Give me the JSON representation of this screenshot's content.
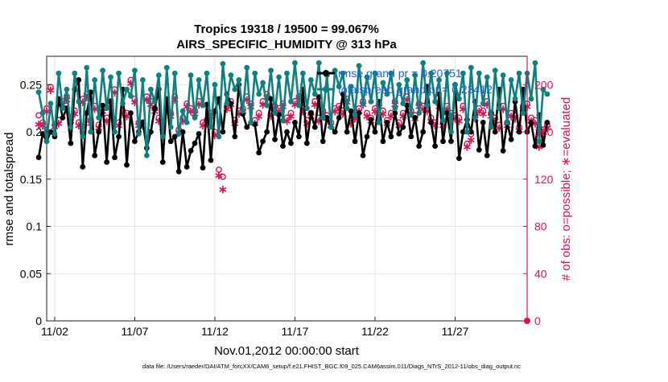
{
  "chart_data": {
    "type": "line",
    "title_line1": "Tropics 19318 / 19500 = 99.067%",
    "title_line2": "AIRS_SPECIFIC_HUMIDITY @ 313 hPa",
    "xlabel": "Nov.01,2012 00:00:00 start",
    "ylabel_left": "rmse and totalspread",
    "ylabel_right": "# of obs: o=possible; ∗=evaluated",
    "footer": "data file: /Users/raeder/DAI/ATM_forcXX/CAM6_setup/f.e21.FHIST_BGC.f09_025.CAM6assim.011/Diags_NTrS_2012-11/obs_diag_output.nc",
    "x_days_range": [
      0.5,
      30.5
    ],
    "x_ticks": [
      {
        "day": 1,
        "label": "11/02"
      },
      {
        "day": 6,
        "label": "11/07"
      },
      {
        "day": 11,
        "label": "11/12"
      },
      {
        "day": 16,
        "label": "11/17"
      },
      {
        "day": 21,
        "label": "11/22"
      },
      {
        "day": 26,
        "label": "11/27"
      }
    ],
    "ylim_left": [
      0,
      0.28
    ],
    "y_ticks_left": [
      {
        "v": 0,
        "label": "0"
      },
      {
        "v": 0.05,
        "label": "0.05"
      },
      {
        "v": 0.1,
        "label": "0.1"
      },
      {
        "v": 0.15,
        "label": "0.15"
      },
      {
        "v": 0.2,
        "label": "0.2"
      },
      {
        "v": 0.25,
        "label": "0.25"
      }
    ],
    "ylim_right": [
      0,
      224
    ],
    "y_ticks_right": [
      {
        "v": 0,
        "label": "0"
      },
      {
        "v": 40,
        "label": "40"
      },
      {
        "v": 80,
        "label": "80"
      },
      {
        "v": 120,
        "label": "120"
      },
      {
        "v": 160,
        "label": "160"
      },
      {
        "v": 200,
        "label": "200"
      }
    ],
    "series": [
      {
        "name": "rmse",
        "legend": "rmse grand pr = 0.20751",
        "color": "#000000",
        "marker": "dot",
        "axis": "left",
        "x_start": 0.0,
        "x_step": 0.25,
        "values": [
          0.173,
          0.198,
          0.19,
          0.2,
          0.195,
          0.235,
          0.215,
          0.225,
          0.188,
          0.245,
          0.255,
          0.163,
          0.22,
          0.242,
          0.175,
          0.2,
          0.228,
          0.168,
          0.232,
          0.173,
          0.195,
          0.245,
          0.165,
          0.22,
          0.19,
          0.2,
          0.21,
          0.183,
          0.2,
          0.225,
          0.245,
          0.168,
          0.235,
          0.19,
          0.195,
          0.158,
          0.2,
          0.163,
          0.18,
          0.188,
          0.198,
          0.162,
          0.229,
          0.17,
          0.222,
          0.235,
          0.2,
          0.24,
          0.23,
          0.195,
          0.25,
          0.219,
          0.205,
          0.21,
          0.208,
          0.178,
          0.19,
          0.2,
          0.235,
          0.192,
          0.218,
          0.185,
          0.2,
          0.188,
          0.21,
          0.195,
          0.245,
          0.188,
          0.22,
          0.205,
          0.237,
          0.19,
          0.215,
          0.205,
          0.2,
          0.215,
          0.24,
          0.2,
          0.222,
          0.19,
          0.22,
          0.175,
          0.195,
          0.213,
          0.2,
          0.232,
          0.19,
          0.21,
          0.195,
          0.22,
          0.198,
          0.205,
          0.228,
          0.195,
          0.215,
          0.185,
          0.2,
          0.248,
          0.21,
          0.185,
          0.24,
          0.19,
          0.22,
          0.19,
          0.25,
          0.172,
          0.2,
          0.213,
          0.2,
          0.232,
          0.181,
          0.21,
          0.175,
          0.22,
          0.2,
          0.245,
          0.18,
          0.21,
          0.192,
          0.232,
          0.2,
          0.245,
          0.2,
          0.21,
          0.185,
          0.218,
          0.186,
          0.21
        ]
      },
      {
        "name": "totalspread",
        "legend": "totalspread grand pr = 0.23412",
        "color": "#0e8080",
        "marker": "dot",
        "axis": "left",
        "x_start": 0.0,
        "x_step": 0.25,
        "values": [
          0.242,
          0.22,
          0.19,
          0.23,
          0.198,
          0.262,
          0.225,
          0.245,
          0.205,
          0.262,
          0.232,
          0.195,
          0.268,
          0.2,
          0.255,
          0.215,
          0.265,
          0.225,
          0.258,
          0.2,
          0.262,
          0.23,
          0.245,
          0.238,
          0.265,
          0.198,
          0.255,
          0.175,
          0.245,
          0.232,
          0.26,
          0.195,
          0.268,
          0.205,
          0.262,
          0.198,
          0.222,
          0.21,
          0.26,
          0.215,
          0.255,
          0.228,
          0.262,
          0.205,
          0.25,
          0.195,
          0.272,
          0.23,
          0.26,
          0.245,
          0.255,
          0.222,
          0.268,
          0.21,
          0.262,
          0.24,
          0.252,
          0.228,
          0.265,
          0.22,
          0.258,
          0.212,
          0.262,
          0.232,
          0.273,
          0.228,
          0.262,
          0.225,
          0.255,
          0.24,
          0.273,
          0.215,
          0.26,
          0.205,
          0.265,
          0.248,
          0.262,
          0.225,
          0.248,
          0.218,
          0.27,
          0.23,
          0.258,
          0.232,
          0.262,
          0.21,
          0.252,
          0.24,
          0.262,
          0.225,
          0.25,
          0.23,
          0.255,
          0.218,
          0.26,
          0.22,
          0.273,
          0.228,
          0.262,
          0.232,
          0.255,
          0.212,
          0.262,
          0.2,
          0.25,
          0.235,
          0.262,
          0.2,
          0.268,
          0.215,
          0.262,
          0.23,
          0.258,
          0.205,
          0.265,
          0.225,
          0.26,
          0.21,
          0.255,
          0.235,
          0.262,
          0.22,
          0.262,
          0.235,
          0.273,
          0.19,
          0.245,
          0.24
        ]
      },
      {
        "name": "obs possible",
        "color": "#dd1155",
        "marker": "circle",
        "axis": "right",
        "x_start": 0.0,
        "x_step": 0.25,
        "values": [
          174,
          168,
          180,
          198,
          166,
          170,
          186,
          190,
          172,
          178,
          168,
          188,
          192,
          170,
          182,
          166,
          180,
          172,
          186,
          196,
          168,
          178,
          176,
          204,
          188,
          168,
          168,
          190,
          186,
          180,
          172,
          166,
          182,
          176,
          190,
          162,
          172,
          184,
          180,
          178,
          186,
          168,
          170,
          176,
          160,
          128,
          122,
          182,
          186,
          170,
          178,
          180,
          190,
          184,
          170,
          176,
          186,
          192,
          176,
          182,
          180,
          184,
          172,
          176,
          186,
          190,
          180,
          170,
          176,
          186,
          172,
          178,
          174,
          168,
          180,
          182,
          178,
          188,
          170,
          174,
          180,
          186,
          176,
          172,
          180,
          184,
          178,
          170,
          176,
          186,
          168,
          176,
          190,
          178,
          174,
          184,
          182,
          180,
          172,
          168,
          184,
          168,
          182,
          176,
          174,
          172,
          182,
          150,
          158,
          174,
          180,
          178,
          186,
          176,
          172,
          166,
          182,
          168,
          176,
          174,
          164,
          182,
          184,
          172,
          170,
          150,
          162,
          166
        ]
      },
      {
        "name": "obs evaluated",
        "color": "#dd1155",
        "marker": "star",
        "axis": "right",
        "x_start": 0.0,
        "x_step": 0.25,
        "values": [
          167,
          166,
          178,
          196,
          165,
          168,
          184,
          188,
          170,
          176,
          166,
          186,
          190,
          168,
          180,
          164,
          178,
          170,
          184,
          194,
          166,
          176,
          174,
          202,
          186,
          166,
          166,
          188,
          184,
          178,
          170,
          164,
          180,
          174,
          188,
          160,
          170,
          182,
          178,
          176,
          184,
          166,
          168,
          174,
          158,
          124,
          112,
          180,
          184,
          168,
          176,
          178,
          188,
          182,
          168,
          174,
          184,
          190,
          174,
          180,
          178,
          182,
          170,
          174,
          184,
          188,
          178,
          168,
          174,
          184,
          170,
          176,
          172,
          166,
          178,
          180,
          176,
          186,
          168,
          172,
          178,
          184,
          174,
          170,
          178,
          182,
          176,
          168,
          174,
          184,
          166,
          174,
          188,
          176,
          172,
          182,
          180,
          178,
          170,
          166,
          182,
          166,
          180,
          174,
          172,
          170,
          180,
          148,
          154,
          172,
          178,
          176,
          184,
          174,
          170,
          164,
          180,
          166,
          174,
          172,
          162,
          180,
          182,
          170,
          168,
          148,
          160,
          164
        ]
      }
    ]
  }
}
